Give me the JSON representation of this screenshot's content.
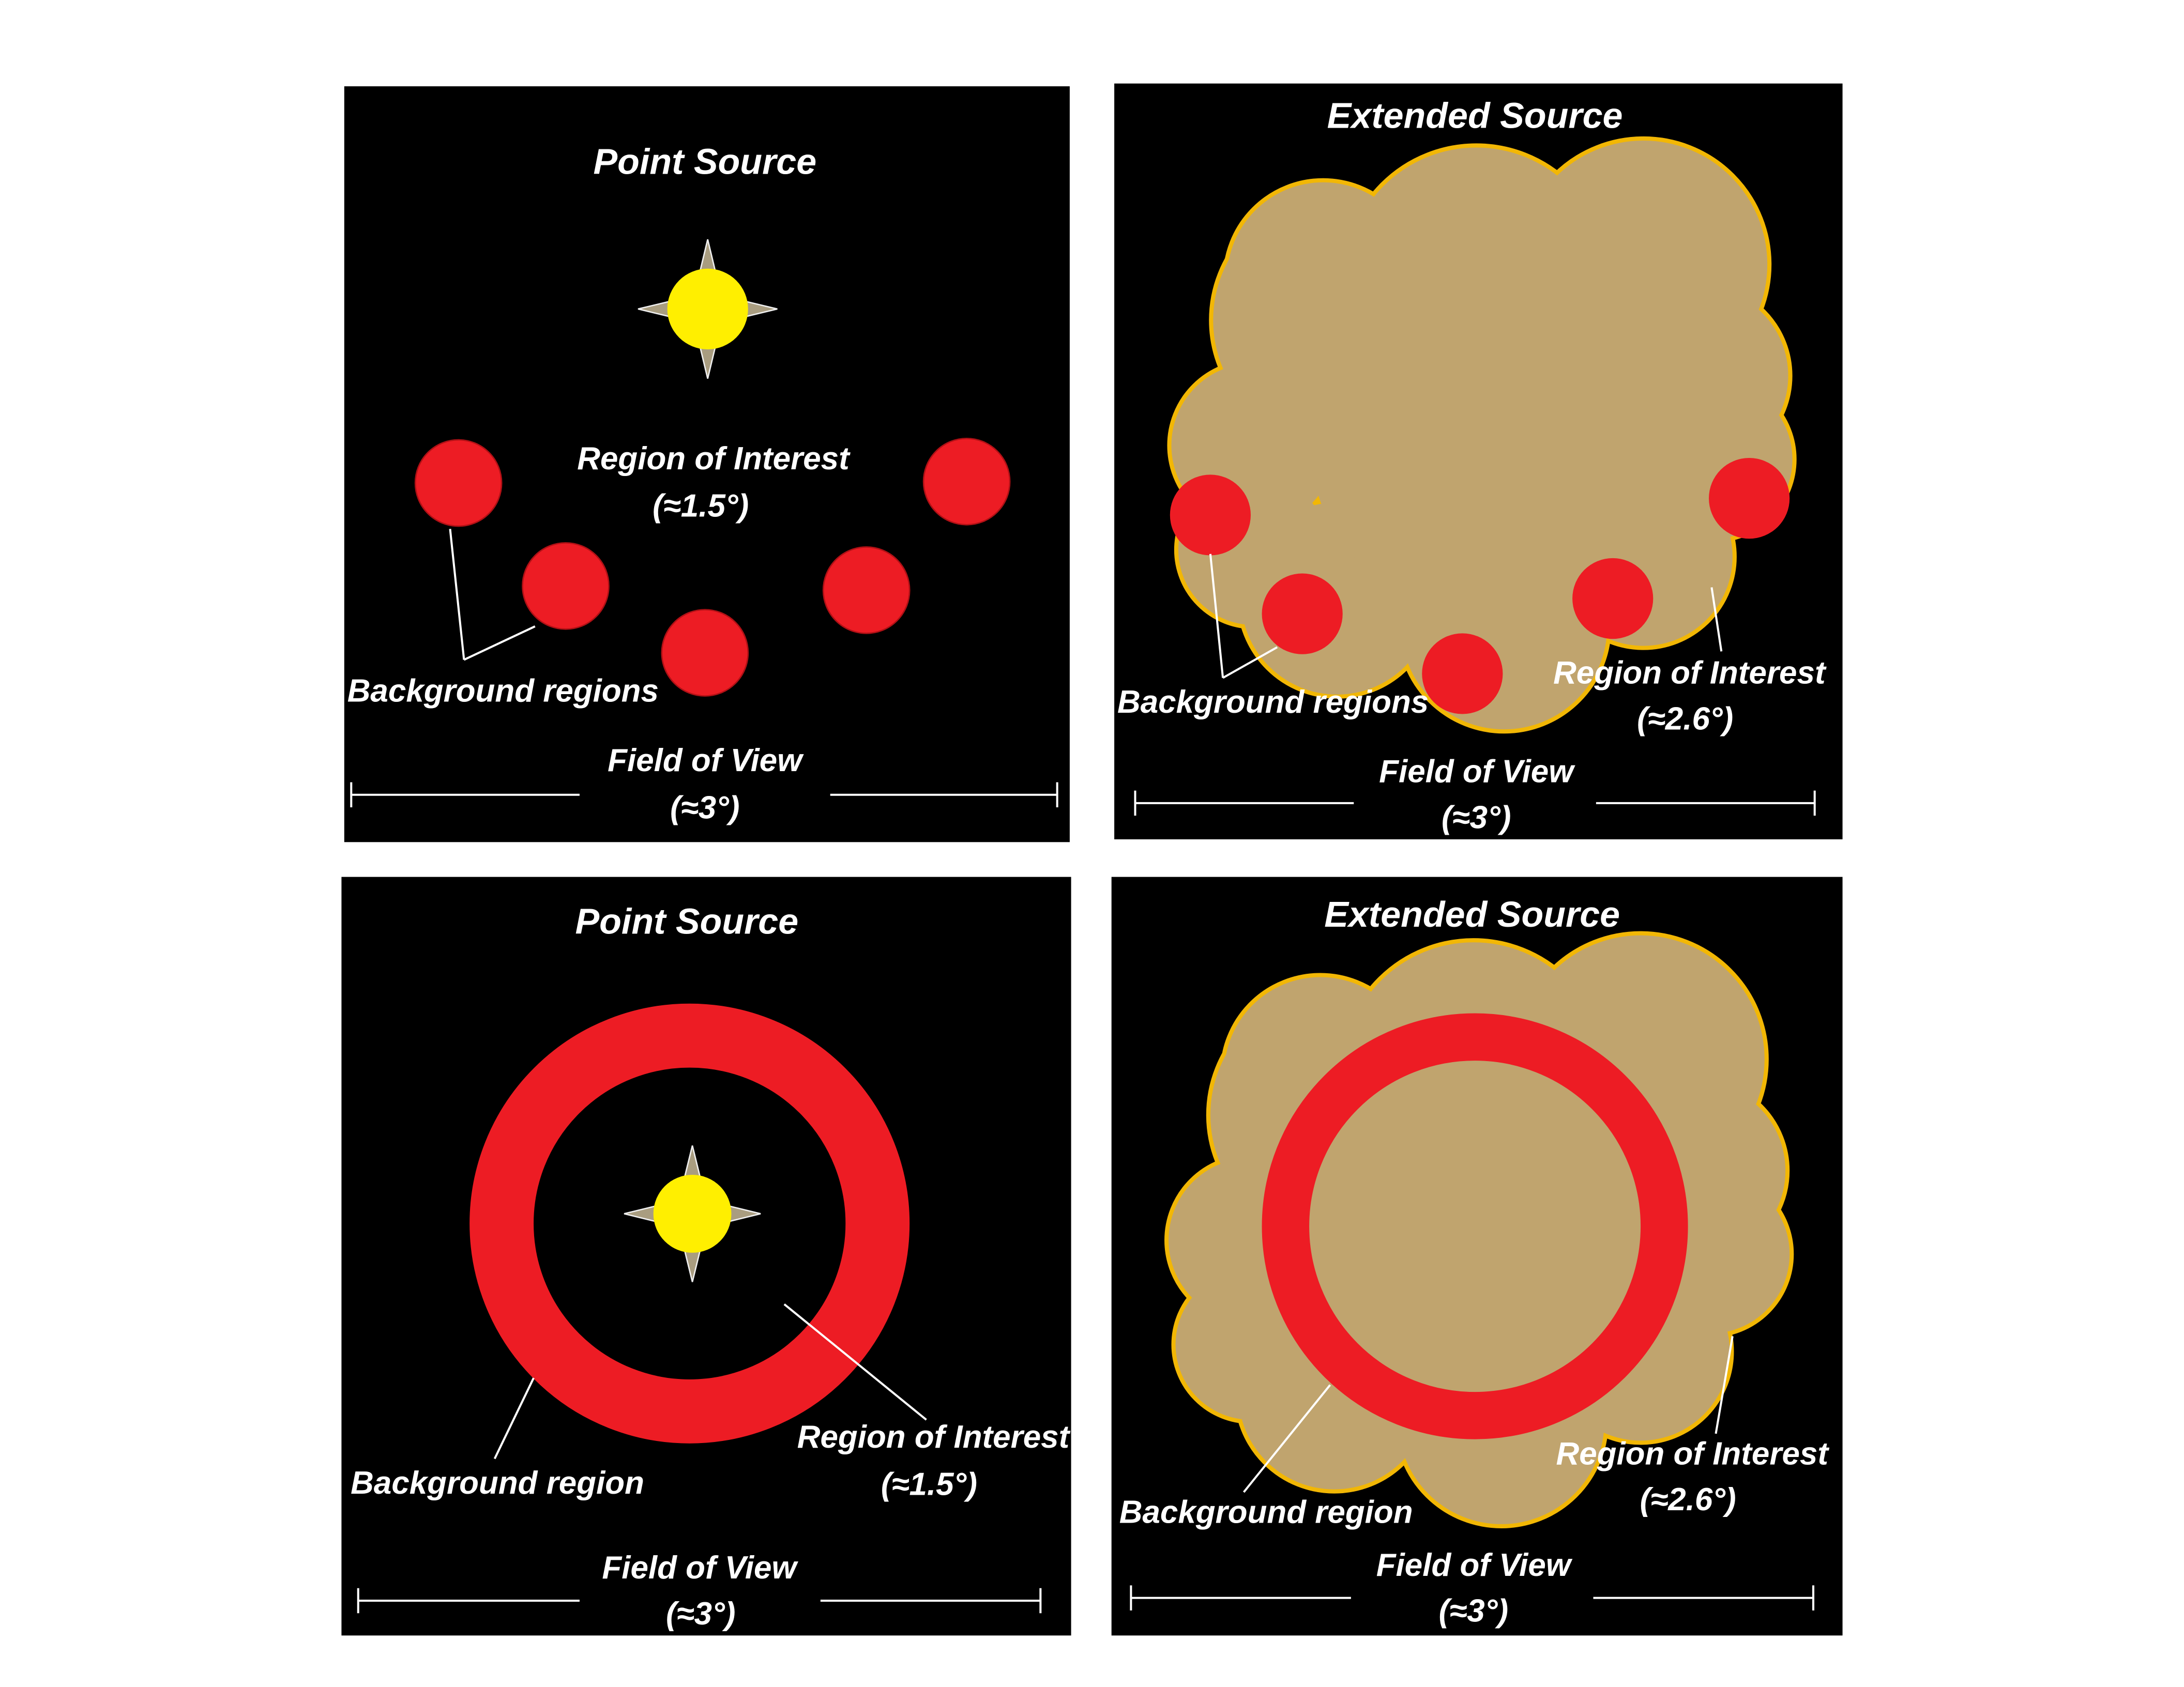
{
  "panels": [
    {
      "title": "Point Source",
      "roi_label": "Region of Interest",
      "roi_size": "(≈1.5°)",
      "background_label": "Background regions",
      "fov_label": "Field of View",
      "fov_size": "(≈3°)"
    },
    {
      "title": "Extended Source",
      "roi_label": "Region of Interest",
      "roi_size": "(≈2.6°)",
      "background_label": "Background regions",
      "fov_label": "Field of View",
      "fov_size": "(≈3°)"
    },
    {
      "title": "Point Source",
      "roi_label": "Region of Interest",
      "roi_size": "(≈1.5°)",
      "background_label": "Background region",
      "fov_label": "Field of View",
      "fov_size": "(≈3°)"
    },
    {
      "title": "Extended Source",
      "roi_label": "Region of Interest",
      "roi_size": "(≈2.6°)",
      "background_label": "Background region",
      "fov_label": "Field of View",
      "fov_size": "(≈3°)"
    }
  ]
}
